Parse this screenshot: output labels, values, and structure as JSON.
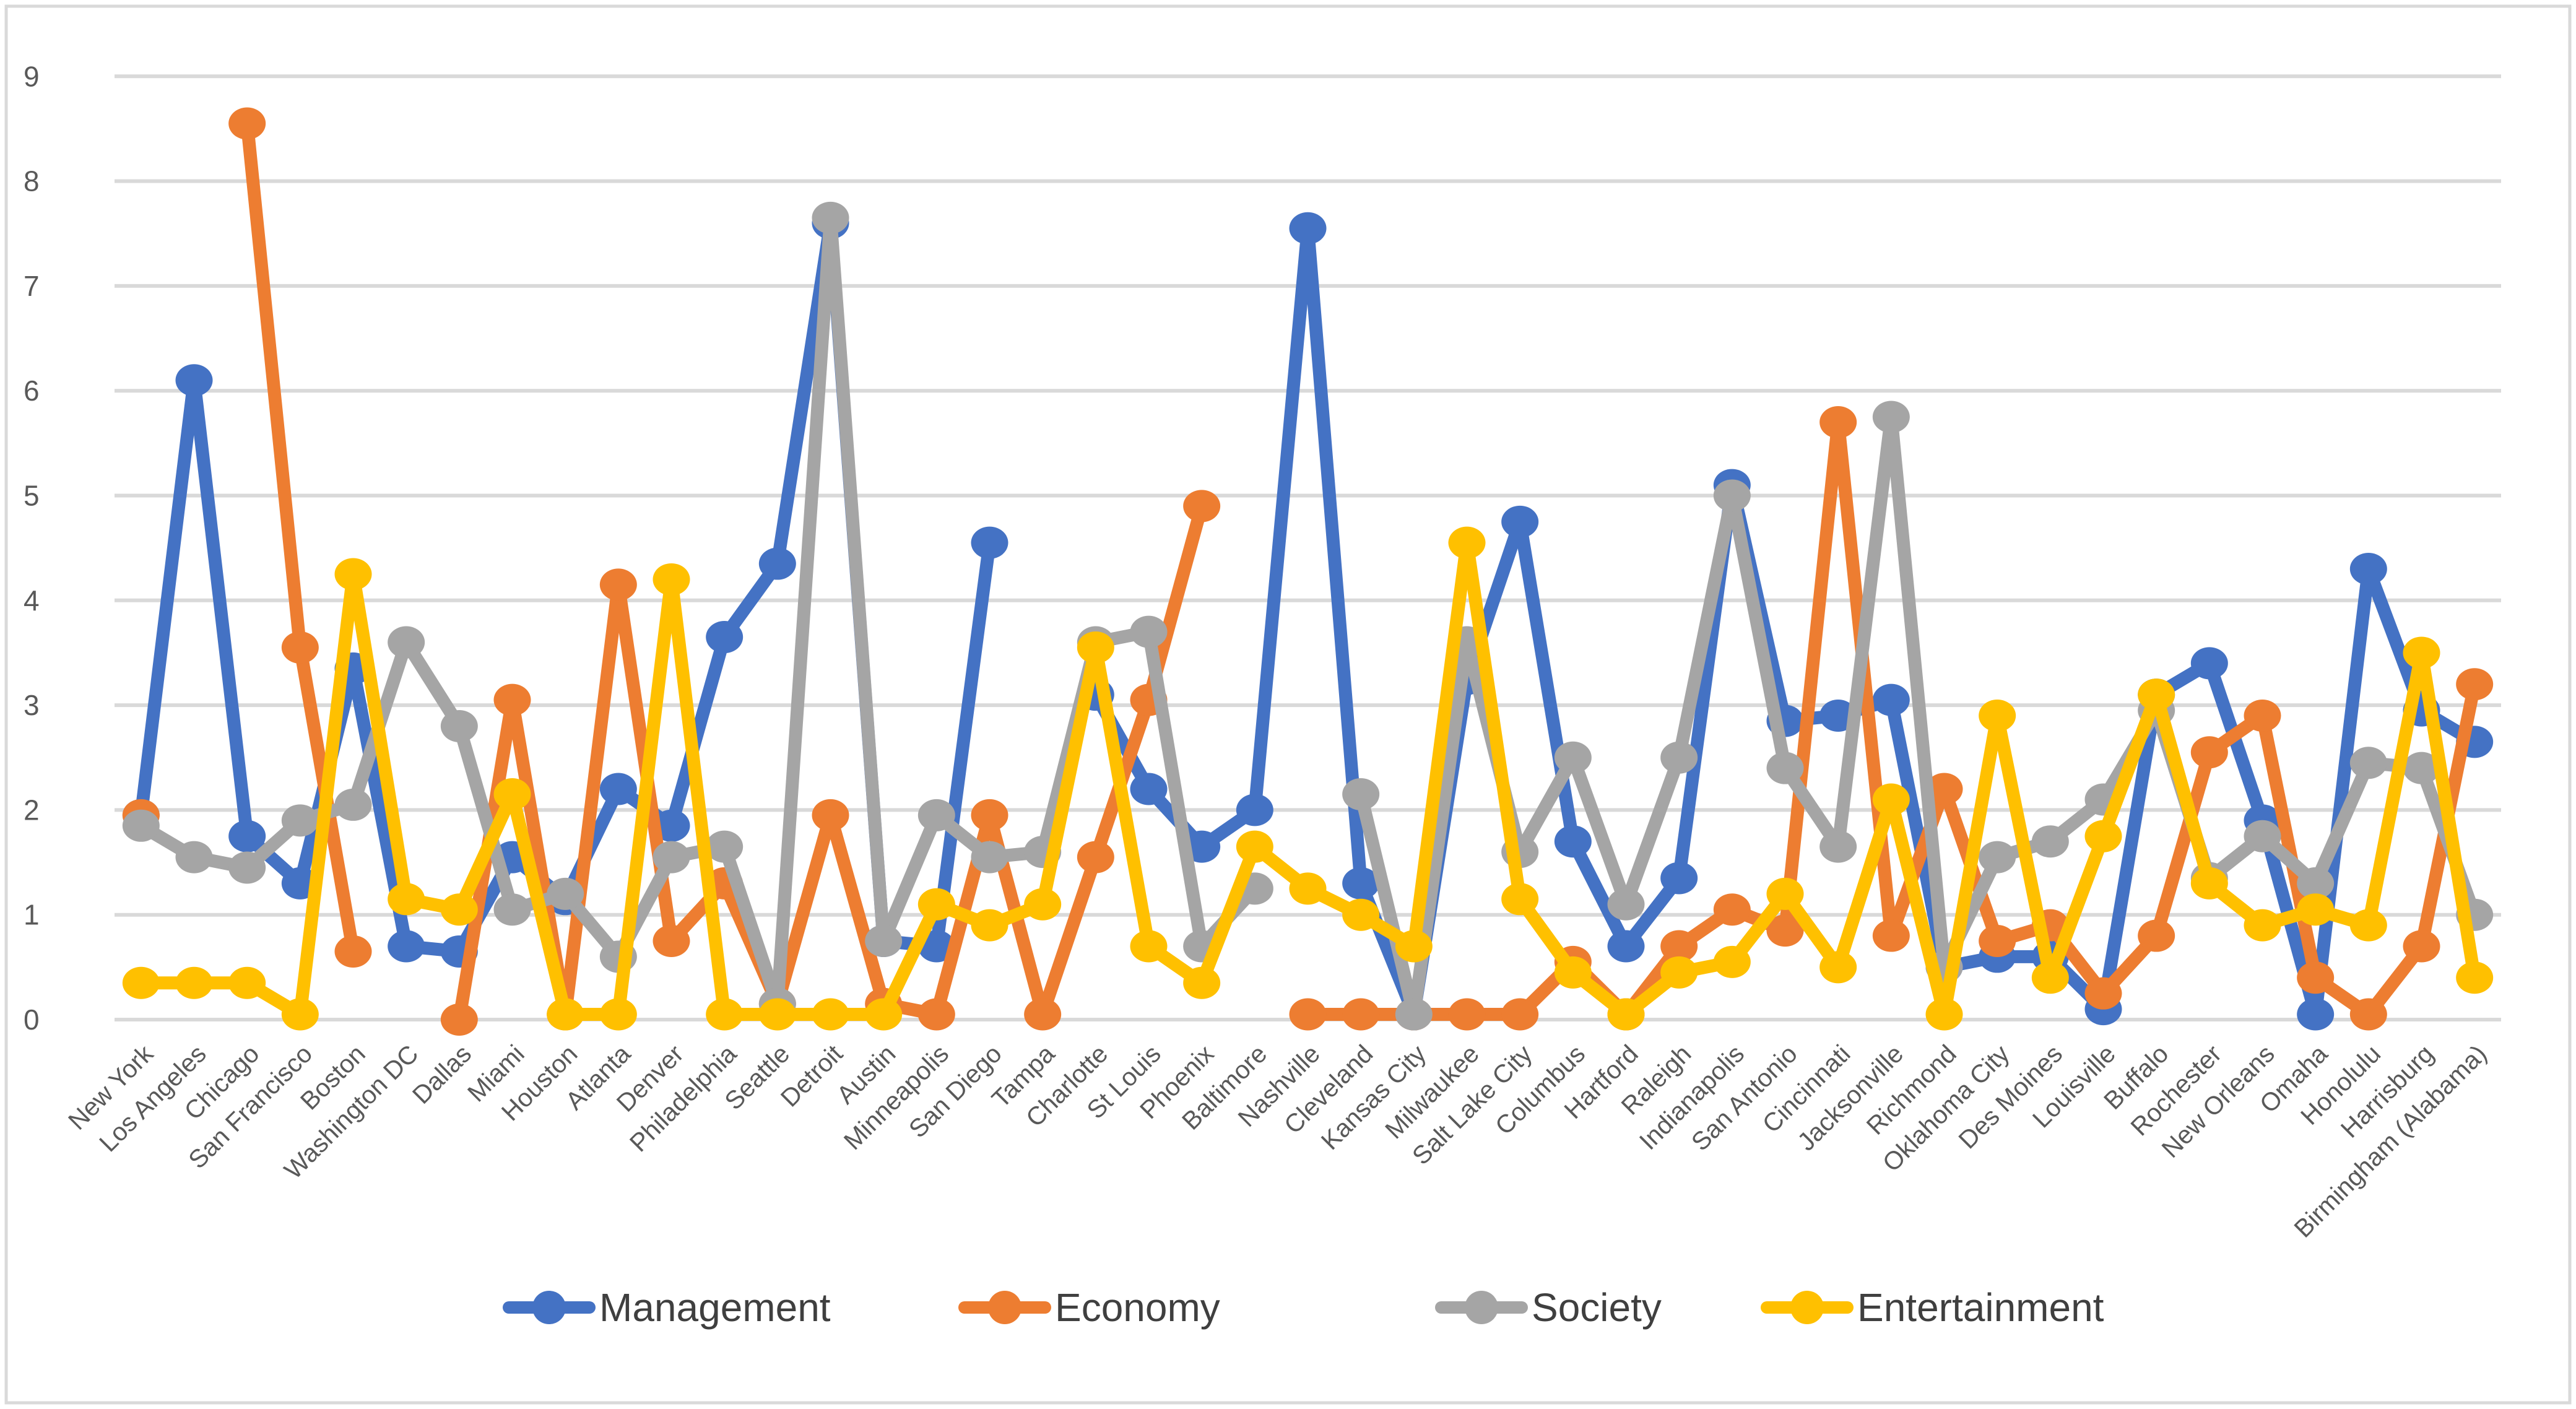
{
  "chart_data": {
    "type": "line",
    "title": "",
    "xlabel": "",
    "ylabel": "",
    "ylim": [
      0,
      9
    ],
    "yticks": [
      0,
      1,
      2,
      3,
      4,
      5,
      6,
      7,
      8,
      9
    ],
    "grid": true,
    "legend_position": "bottom",
    "background_color": "#FFFFFF",
    "gridline_color": "#D9D9D9",
    "border_color": "#D9D9D9",
    "axis_label_color": "#595959",
    "categories": [
      "New York",
      "Los Angeles",
      "Chicago",
      "San Francisco",
      "Boston",
      "Washington DC",
      "Dallas",
      "Miami",
      "Houston",
      "Atlanta",
      "Denver",
      "Philadelphia",
      "Seattle",
      "Detroit",
      "Austin",
      "Minneapolis",
      "San Diego",
      "Tampa",
      "Charlotte",
      "St Louis",
      "Phoenix",
      "Baltimore",
      "Nashville",
      "Cleveland",
      "Kansas City",
      "Milwaukee",
      "Salt Lake City",
      "Columbus",
      "Hartford",
      "Raleigh",
      "Indianapolis",
      "San Antonio",
      "Cincinnati",
      "Jacksonville",
      "Richmond",
      "Oklahoma City",
      "Des Moines",
      "Louisville",
      "Buffalo",
      "Rochester",
      "New Orleans",
      "Omaha",
      "Honolulu",
      "Harrisburg",
      "Birmingham (Alabama)"
    ],
    "series": [
      {
        "name": "Management",
        "color": "#4472C4",
        "values": [
          1.95,
          6.1,
          1.75,
          1.3,
          3.35,
          0.7,
          0.65,
          1.55,
          1.15,
          2.2,
          1.85,
          3.65,
          4.35,
          7.6,
          0.75,
          0.7,
          4.55,
          null,
          3.1,
          2.2,
          1.65,
          2.0,
          7.55,
          1.3,
          0.05,
          3.25,
          4.75,
          1.7,
          0.7,
          1.35,
          5.1,
          2.85,
          2.9,
          3.05,
          0.5,
          0.6,
          0.6,
          0.1,
          3.1,
          3.4,
          1.9,
          0.05,
          4.3,
          2.95,
          2.65
        ]
      },
      {
        "name": "Economy",
        "color": "#ED7D31",
        "values": [
          1.95,
          null,
          8.55,
          3.55,
          0.65,
          null,
          0.0,
          3.05,
          0.05,
          4.15,
          0.75,
          1.3,
          0.15,
          1.95,
          0.15,
          0.05,
          1.95,
          0.05,
          1.55,
          3.05,
          4.9,
          null,
          0.05,
          0.05,
          0.05,
          0.05,
          0.05,
          0.55,
          0.05,
          0.7,
          1.05,
          0.85,
          5.7,
          0.8,
          2.2,
          0.75,
          0.9,
          0.25,
          0.8,
          2.55,
          2.9,
          0.4,
          0.05,
          0.7,
          3.2
        ]
      },
      {
        "name": "Society",
        "color": "#A5A5A5",
        "values": [
          1.85,
          1.55,
          1.45,
          1.9,
          2.05,
          3.6,
          2.8,
          1.05,
          1.2,
          0.6,
          1.55,
          1.65,
          0.15,
          7.65,
          0.75,
          1.95,
          1.55,
          1.6,
          3.6,
          3.7,
          0.7,
          1.25,
          null,
          2.15,
          0.05,
          3.6,
          1.6,
          2.5,
          1.1,
          2.5,
          5.0,
          2.4,
          1.65,
          5.75,
          0.5,
          1.55,
          1.7,
          2.1,
          2.95,
          1.35,
          1.75,
          1.3,
          2.45,
          2.4,
          1.0
        ]
      },
      {
        "name": "Entertainment",
        "color": "#FFC000",
        "values": [
          0.35,
          0.35,
          0.35,
          0.05,
          4.25,
          1.15,
          1.05,
          2.15,
          0.05,
          0.05,
          4.2,
          0.05,
          0.05,
          0.05,
          0.05,
          1.1,
          0.9,
          1.1,
          3.55,
          0.7,
          0.35,
          1.65,
          1.25,
          1.0,
          0.7,
          4.55,
          1.15,
          0.45,
          0.05,
          0.45,
          0.55,
          1.2,
          0.5,
          2.1,
          0.05,
          2.9,
          0.4,
          1.75,
          3.1,
          1.3,
          0.9,
          1.05,
          0.9,
          3.5,
          0.4
        ]
      }
    ]
  }
}
